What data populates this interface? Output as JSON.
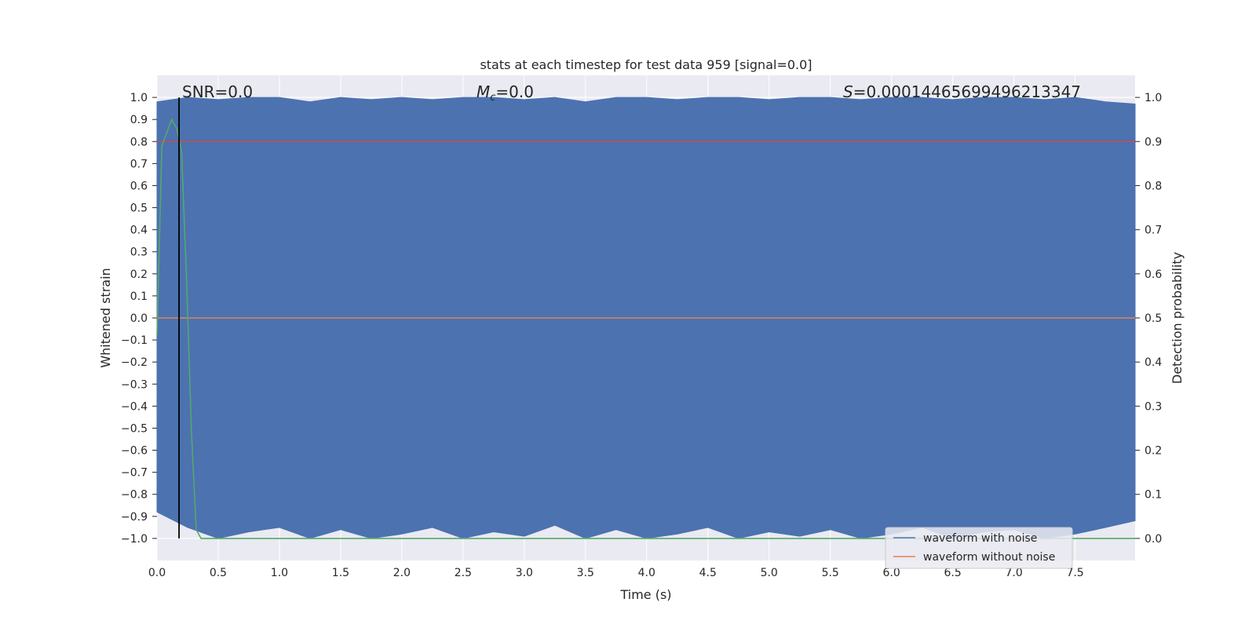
{
  "chart_data": {
    "type": "line",
    "title": "stats at each timestep for test data 959 [signal=0.0]",
    "xlabel": "Time (s)",
    "ylabel": "Whitened strain",
    "y2label": "Detection probability",
    "xlim": [
      0.0,
      7.99
    ],
    "ylim": [
      -1.1,
      1.1
    ],
    "y2lim": [
      -0.05,
      1.05
    ],
    "x_ticks": [
      "0.0",
      "0.5",
      "1.0",
      "1.5",
      "2.0",
      "2.5",
      "3.0",
      "3.5",
      "4.0",
      "4.5",
      "5.0",
      "5.5",
      "6.0",
      "6.5",
      "7.0",
      "7.5"
    ],
    "y_ticks": [
      "1.0",
      "0.9",
      "0.8",
      "0.7",
      "0.6",
      "0.5",
      "0.4",
      "0.3",
      "0.2",
      "0.1",
      "0.0",
      "−0.1",
      "−0.2",
      "−0.3",
      "−0.4",
      "−0.5",
      "−0.6",
      "−0.7",
      "−0.8",
      "−0.9",
      "−1.0"
    ],
    "y2_ticks": [
      "1.0",
      "0.9",
      "0.8",
      "0.7",
      "0.6",
      "0.5",
      "0.4",
      "0.3",
      "0.2",
      "0.1",
      "0.0"
    ],
    "grid": true,
    "legend_position": "lower-right",
    "annotations": {
      "snr": "SNR=0.0",
      "mc_symbol": "M",
      "mc_sub": "c",
      "mc_value": "=0.0",
      "s_symbol": "S",
      "s_value": "=0.00014465699496213347"
    },
    "series": [
      {
        "name": "waveform with noise",
        "color": "#4c72b0",
        "envelope_x": [
          0.0,
          0.25,
          0.5,
          0.75,
          1.0,
          1.25,
          1.5,
          1.75,
          2.0,
          2.25,
          2.5,
          2.75,
          3.0,
          3.25,
          3.5,
          3.75,
          4.0,
          4.25,
          4.5,
          4.75,
          5.0,
          5.25,
          5.5,
          5.75,
          6.0,
          6.25,
          6.5,
          6.75,
          7.0,
          7.25,
          7.5,
          7.75,
          7.99
        ],
        "upper": [
          0.98,
          1.0,
          0.99,
          1.0,
          1.0,
          0.98,
          1.0,
          0.99,
          1.0,
          0.99,
          1.0,
          1.0,
          0.99,
          1.0,
          0.98,
          1.0,
          1.0,
          0.99,
          1.0,
          1.0,
          0.99,
          1.0,
          1.0,
          0.99,
          1.0,
          1.0,
          0.99,
          1.0,
          1.0,
          0.99,
          1.0,
          0.98,
          0.97
        ],
        "lower": [
          -0.88,
          -0.95,
          -1.0,
          -0.97,
          -0.95,
          -1.0,
          -0.96,
          -1.0,
          -0.98,
          -0.95,
          -1.0,
          -0.97,
          -0.99,
          -0.94,
          -1.0,
          -0.96,
          -1.0,
          -0.98,
          -0.95,
          -1.0,
          -0.97,
          -0.99,
          -0.96,
          -1.0,
          -0.98,
          -0.95,
          -1.0,
          -0.97,
          -0.96,
          -1.0,
          -0.98,
          -0.95,
          -0.92
        ]
      },
      {
        "name": "waveform without noise",
        "color": "#dd8452",
        "x": [
          0.0,
          7.99
        ],
        "y": [
          0.0,
          0.0
        ]
      },
      {
        "name": "",
        "axis": "right",
        "color": "#55a868",
        "x": [
          0.0,
          0.04,
          0.08,
          0.12,
          0.16,
          0.2,
          0.24,
          0.28,
          0.32,
          0.36,
          0.4,
          1.0,
          2.0,
          3.0,
          4.0,
          5.0,
          6.0,
          7.0,
          7.99
        ],
        "y": [
          0.46,
          0.89,
          0.92,
          0.95,
          0.93,
          0.88,
          0.6,
          0.25,
          0.02,
          0.0,
          0.0,
          0.0,
          0.0,
          0.0,
          0.0,
          0.0,
          0.0,
          0.0,
          0.0
        ]
      },
      {
        "name": "",
        "axis": "right",
        "color": "#c44e52",
        "x": [
          0.0,
          7.99
        ],
        "y": [
          0.9,
          0.9
        ]
      }
    ],
    "vertical_lines": [
      {
        "x": 0.18,
        "color": "#000000"
      }
    ]
  }
}
